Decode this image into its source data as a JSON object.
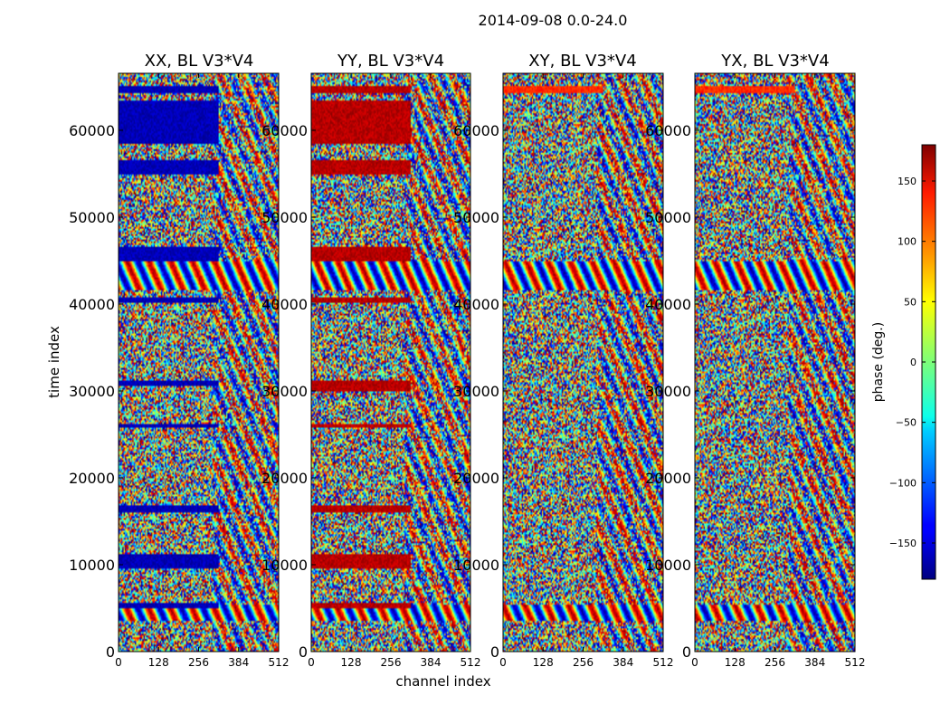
{
  "chart_data": {
    "type": "heatmap",
    "suptitle": "2014-09-08 0.0-24.0",
    "xlabel": "channel index",
    "ylabel": "time index",
    "xlim": [
      0,
      512
    ],
    "ylim": [
      0,
      66560
    ],
    "xticks": [
      "0",
      "128",
      "256",
      "384",
      "512"
    ],
    "xtick_values": [
      0,
      128,
      256,
      384,
      512
    ],
    "yticks": [
      "0",
      "10000",
      "20000",
      "30000",
      "40000",
      "50000",
      "60000"
    ],
    "ytick_values": [
      0,
      10000,
      20000,
      30000,
      40000,
      50000,
      60000
    ],
    "colormap": "jet",
    "colorbar": {
      "label": "phase (deg.)",
      "range": [
        -180,
        180
      ],
      "ticks": [
        "150",
        "100",
        "50",
        "0",
        "−50",
        "−100",
        "−150"
      ],
      "tick_values": [
        150,
        100,
        50,
        0,
        -50,
        -100,
        -150
      ]
    },
    "panels": [
      {
        "title": "XX, BL V3*V4",
        "dominant_phase_deg": -160,
        "coherent_rows": [
          [
            58500,
            63500
          ],
          [
            64200,
            65200
          ],
          [
            55000,
            56500
          ],
          [
            45000,
            46500
          ],
          [
            40100,
            40800
          ],
          [
            30500,
            31200
          ],
          [
            25700,
            26300
          ],
          [
            16000,
            16800
          ],
          [
            9500,
            11200
          ],
          [
            5000,
            5700
          ]
        ]
      },
      {
        "title": "YY, BL V3*V4",
        "dominant_phase_deg": 160,
        "coherent_rows": [
          [
            58500,
            63500
          ],
          [
            64200,
            65200
          ],
          [
            55000,
            56500
          ],
          [
            45000,
            46500
          ],
          [
            40100,
            40800
          ],
          [
            30000,
            31300
          ],
          [
            25700,
            26300
          ],
          [
            16000,
            16800
          ],
          [
            9500,
            11200
          ],
          [
            5000,
            5700
          ]
        ]
      },
      {
        "title": "XY, BL V3*V4",
        "dominant_phase_deg": 120,
        "coherent_rows": [
          [
            64200,
            65200
          ]
        ]
      },
      {
        "title": "YX, BL V3*V4",
        "dominant_phase_deg": 120,
        "coherent_rows": [
          [
            64200,
            65200
          ]
        ]
      }
    ]
  }
}
